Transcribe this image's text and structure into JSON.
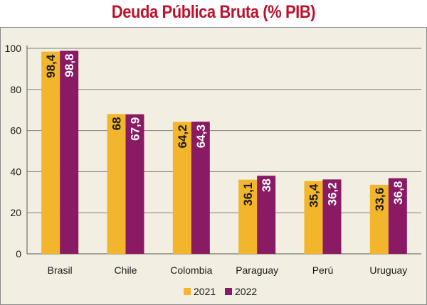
{
  "chart_data": {
    "type": "bar",
    "title": "Deuda Pública Bruta (% PIB)",
    "categories": [
      "Brasil",
      "Chile",
      "Colombia",
      "Paraguay",
      "Perú",
      "Uruguay"
    ],
    "series": [
      {
        "name": "2021",
        "values": [
          98.4,
          68,
          64.2,
          36.1,
          35.4,
          33.6
        ],
        "labels": [
          "98,4",
          "68",
          "64,2",
          "36,1",
          "35,4",
          "33,6"
        ],
        "color": "#f2b52b",
        "label_color": "#1a1a1a"
      },
      {
        "name": "2022",
        "values": [
          98.8,
          67.9,
          64.3,
          38,
          36.2,
          36.8
        ],
        "labels": [
          "98,8",
          "67,9",
          "64,3",
          "38",
          "36,2",
          "36,8"
        ],
        "color": "#8a1a63",
        "label_color": "#ffffff"
      }
    ],
    "ylim": [
      0,
      100
    ],
    "yticks": [
      "0",
      "20",
      "40",
      "60",
      "80",
      "100"
    ],
    "grid": true,
    "legend_position": "bottom-center",
    "background": "#f2eee1",
    "title_color": "#c0112b"
  }
}
